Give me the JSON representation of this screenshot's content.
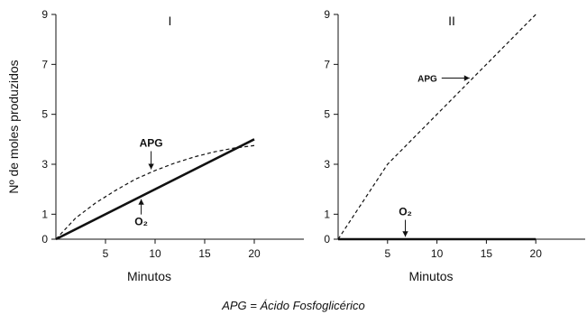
{
  "caption": "APG = Ácido Fosfoglicérico",
  "chart_data": [
    {
      "type": "line",
      "panel_label": "I",
      "xlabel": "Minutos",
      "ylabel": "Nº de moles produzidos",
      "xlim": [
        0,
        25
      ],
      "ylim": [
        0,
        9
      ],
      "xticks": [
        5,
        10,
        15,
        20
      ],
      "yticks": [
        0,
        1,
        3,
        5,
        7,
        9
      ],
      "grid": false,
      "series": [
        {
          "name": "APG",
          "style": "dashed",
          "color": "#111111",
          "x": [
            0,
            2,
            4,
            6,
            8,
            10,
            12,
            14,
            16,
            18,
            20
          ],
          "y": [
            0,
            0.85,
            1.45,
            1.95,
            2.4,
            2.75,
            3.05,
            3.3,
            3.5,
            3.65,
            3.75
          ]
        },
        {
          "name": "O₂",
          "style": "solid",
          "color": "#111111",
          "x": [
            0,
            20
          ],
          "y": [
            0,
            4.0
          ]
        }
      ],
      "annotations": [
        {
          "text": "APG",
          "x": 9.6,
          "y": 3.85,
          "arrow_to": [
            9.6,
            2.8
          ],
          "direction": "down"
        },
        {
          "text": "O₂",
          "x": 8.6,
          "y": 0.7,
          "arrow_to": [
            8.6,
            1.6
          ],
          "direction": "up"
        }
      ]
    },
    {
      "type": "line",
      "panel_label": "II",
      "xlabel": "Minutos",
      "ylabel": "",
      "xlim": [
        0,
        25
      ],
      "ylim": [
        0,
        9
      ],
      "xticks": [
        5,
        10,
        15,
        20
      ],
      "yticks": [
        0,
        1,
        3,
        5,
        7,
        9
      ],
      "grid": false,
      "series": [
        {
          "name": "APG",
          "style": "dashed",
          "color": "#111111",
          "x": [
            0,
            5,
            20
          ],
          "y": [
            0,
            3.0,
            9.0
          ]
        },
        {
          "name": "O₂",
          "style": "solid",
          "color": "#111111",
          "x": [
            0,
            20
          ],
          "y": [
            0,
            0
          ]
        }
      ],
      "annotations": [
        {
          "text": "APG",
          "x": 10.2,
          "y": 6.45,
          "arrow_to": [
            13.3,
            6.45
          ],
          "direction": "right"
        },
        {
          "text": "O₂",
          "x": 6.8,
          "y": 1.1,
          "arrow_to": [
            6.8,
            0.1
          ],
          "direction": "down"
        }
      ]
    }
  ]
}
